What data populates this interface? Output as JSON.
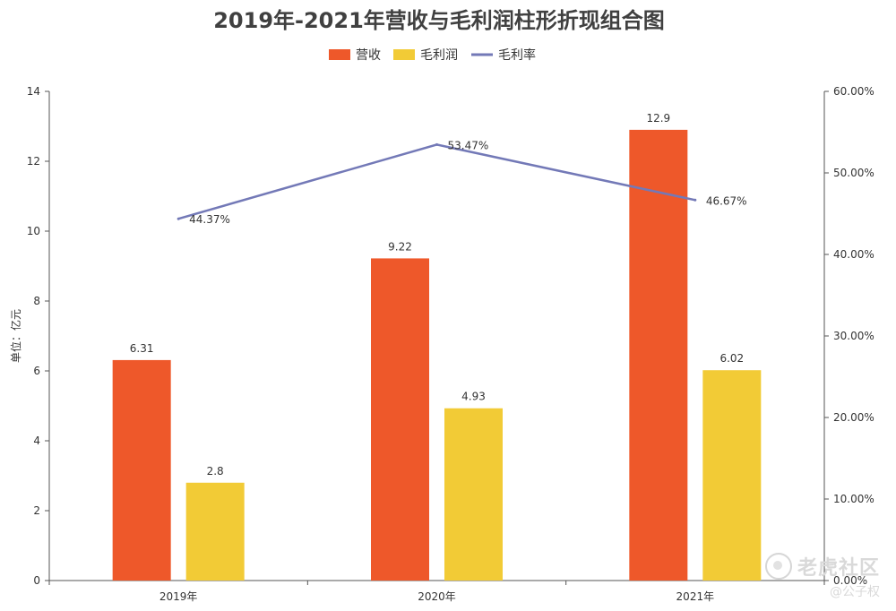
{
  "chart_data": {
    "type": "bar",
    "title": "2019年-2021年营收与毛利润柱形折现组合图",
    "categories": [
      "2019年",
      "2020年",
      "2021年"
    ],
    "series": [
      {
        "name": "营收",
        "type": "bar",
        "values": [
          6.31,
          9.22,
          12.9
        ],
        "color": "#ee582a"
      },
      {
        "name": "毛利润",
        "type": "bar",
        "values": [
          2.8,
          4.93,
          6.02
        ],
        "color": "#f2cb36"
      },
      {
        "name": "毛利率",
        "type": "line",
        "axis": "right",
        "values": [
          44.37,
          53.47,
          46.67
        ],
        "labels": [
          "44.37%",
          "53.47%",
          "46.67%"
        ],
        "color": "#7379b7"
      }
    ],
    "ylabel": "单位：亿元",
    "ylim": [
      0,
      14
    ],
    "yticks": [
      "0",
      "2",
      "4",
      "6",
      "8",
      "10",
      "12",
      "14"
    ],
    "y2lim": [
      0,
      60
    ],
    "y2ticks": [
      "0.00%",
      "10.00%",
      "20.00%",
      "30.00%",
      "40.00%",
      "50.00%",
      "60.00%"
    ],
    "legend": "top",
    "grid": false
  },
  "watermark": {
    "main": "老虎社区",
    "sub": "@公子权"
  }
}
